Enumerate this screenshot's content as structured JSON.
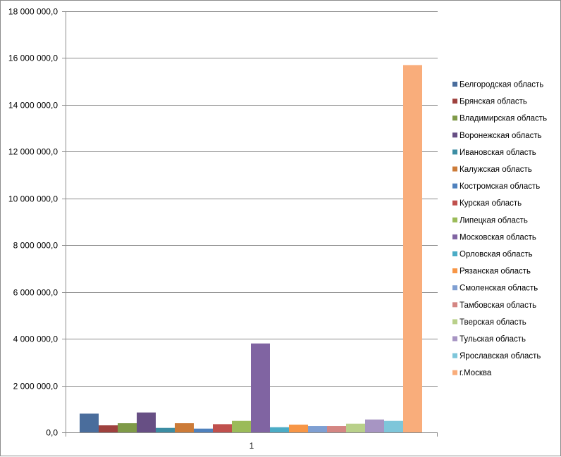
{
  "chart_data": {
    "type": "bar",
    "categories": [
      "1"
    ],
    "ylim": [
      0,
      18000000
    ],
    "yticks": [
      0,
      2000000,
      4000000,
      6000000,
      8000000,
      10000000,
      12000000,
      14000000,
      16000000,
      18000000
    ],
    "ytick_labels": [
      "0,0",
      "2 000 000,0",
      "4 000 000,0",
      "6 000 000,0",
      "8 000 000,0",
      "10 000 000,0",
      "12 000 000,0",
      "14 000 000,0",
      "16 000 000,0",
      "18 000 000,0"
    ],
    "grid": true,
    "legend_position": "right",
    "series": [
      {
        "name": "Белгородская область",
        "values": [
          800000
        ],
        "color": "#4a6d9c"
      },
      {
        "name": "Брянская область",
        "values": [
          300000
        ],
        "color": "#9e413e"
      },
      {
        "name": "Владимирская область",
        "values": [
          390000
        ],
        "color": "#7f9a48"
      },
      {
        "name": "Воронежская область",
        "values": [
          850000
        ],
        "color": "#674f84"
      },
      {
        "name": "Ивановская область",
        "values": [
          190000
        ],
        "color": "#3c8da3"
      },
      {
        "name": "Калужская область",
        "values": [
          390000
        ],
        "color": "#cc7b38"
      },
      {
        "name": "Костромская область",
        "values": [
          160000
        ],
        "color": "#4f81bd"
      },
      {
        "name": "Курская область",
        "values": [
          350000
        ],
        "color": "#c0504d"
      },
      {
        "name": "Липецкая область",
        "values": [
          490000
        ],
        "color": "#9bbb59"
      },
      {
        "name": "Московская область",
        "values": [
          3800000
        ],
        "color": "#8064a2"
      },
      {
        "name": "Орловская область",
        "values": [
          220000
        ],
        "color": "#4bacc6"
      },
      {
        "name": "Рязанская область",
        "values": [
          330000
        ],
        "color": "#f79646"
      },
      {
        "name": "Смоленская область",
        "values": [
          270000
        ],
        "color": "#7f9fd2"
      },
      {
        "name": "Тамбовская область",
        "values": [
          270000
        ],
        "color": "#d48683"
      },
      {
        "name": "Тверская область",
        "values": [
          370000
        ],
        "color": "#b9d08a"
      },
      {
        "name": "Тульская область",
        "values": [
          550000
        ],
        "color": "#a795c3"
      },
      {
        "name": "Ярославская область",
        "values": [
          490000
        ],
        "color": "#7ec6da"
      },
      {
        "name": "г.Москва",
        "values": [
          15700000
        ],
        "color": "#f9ad7b"
      }
    ]
  }
}
